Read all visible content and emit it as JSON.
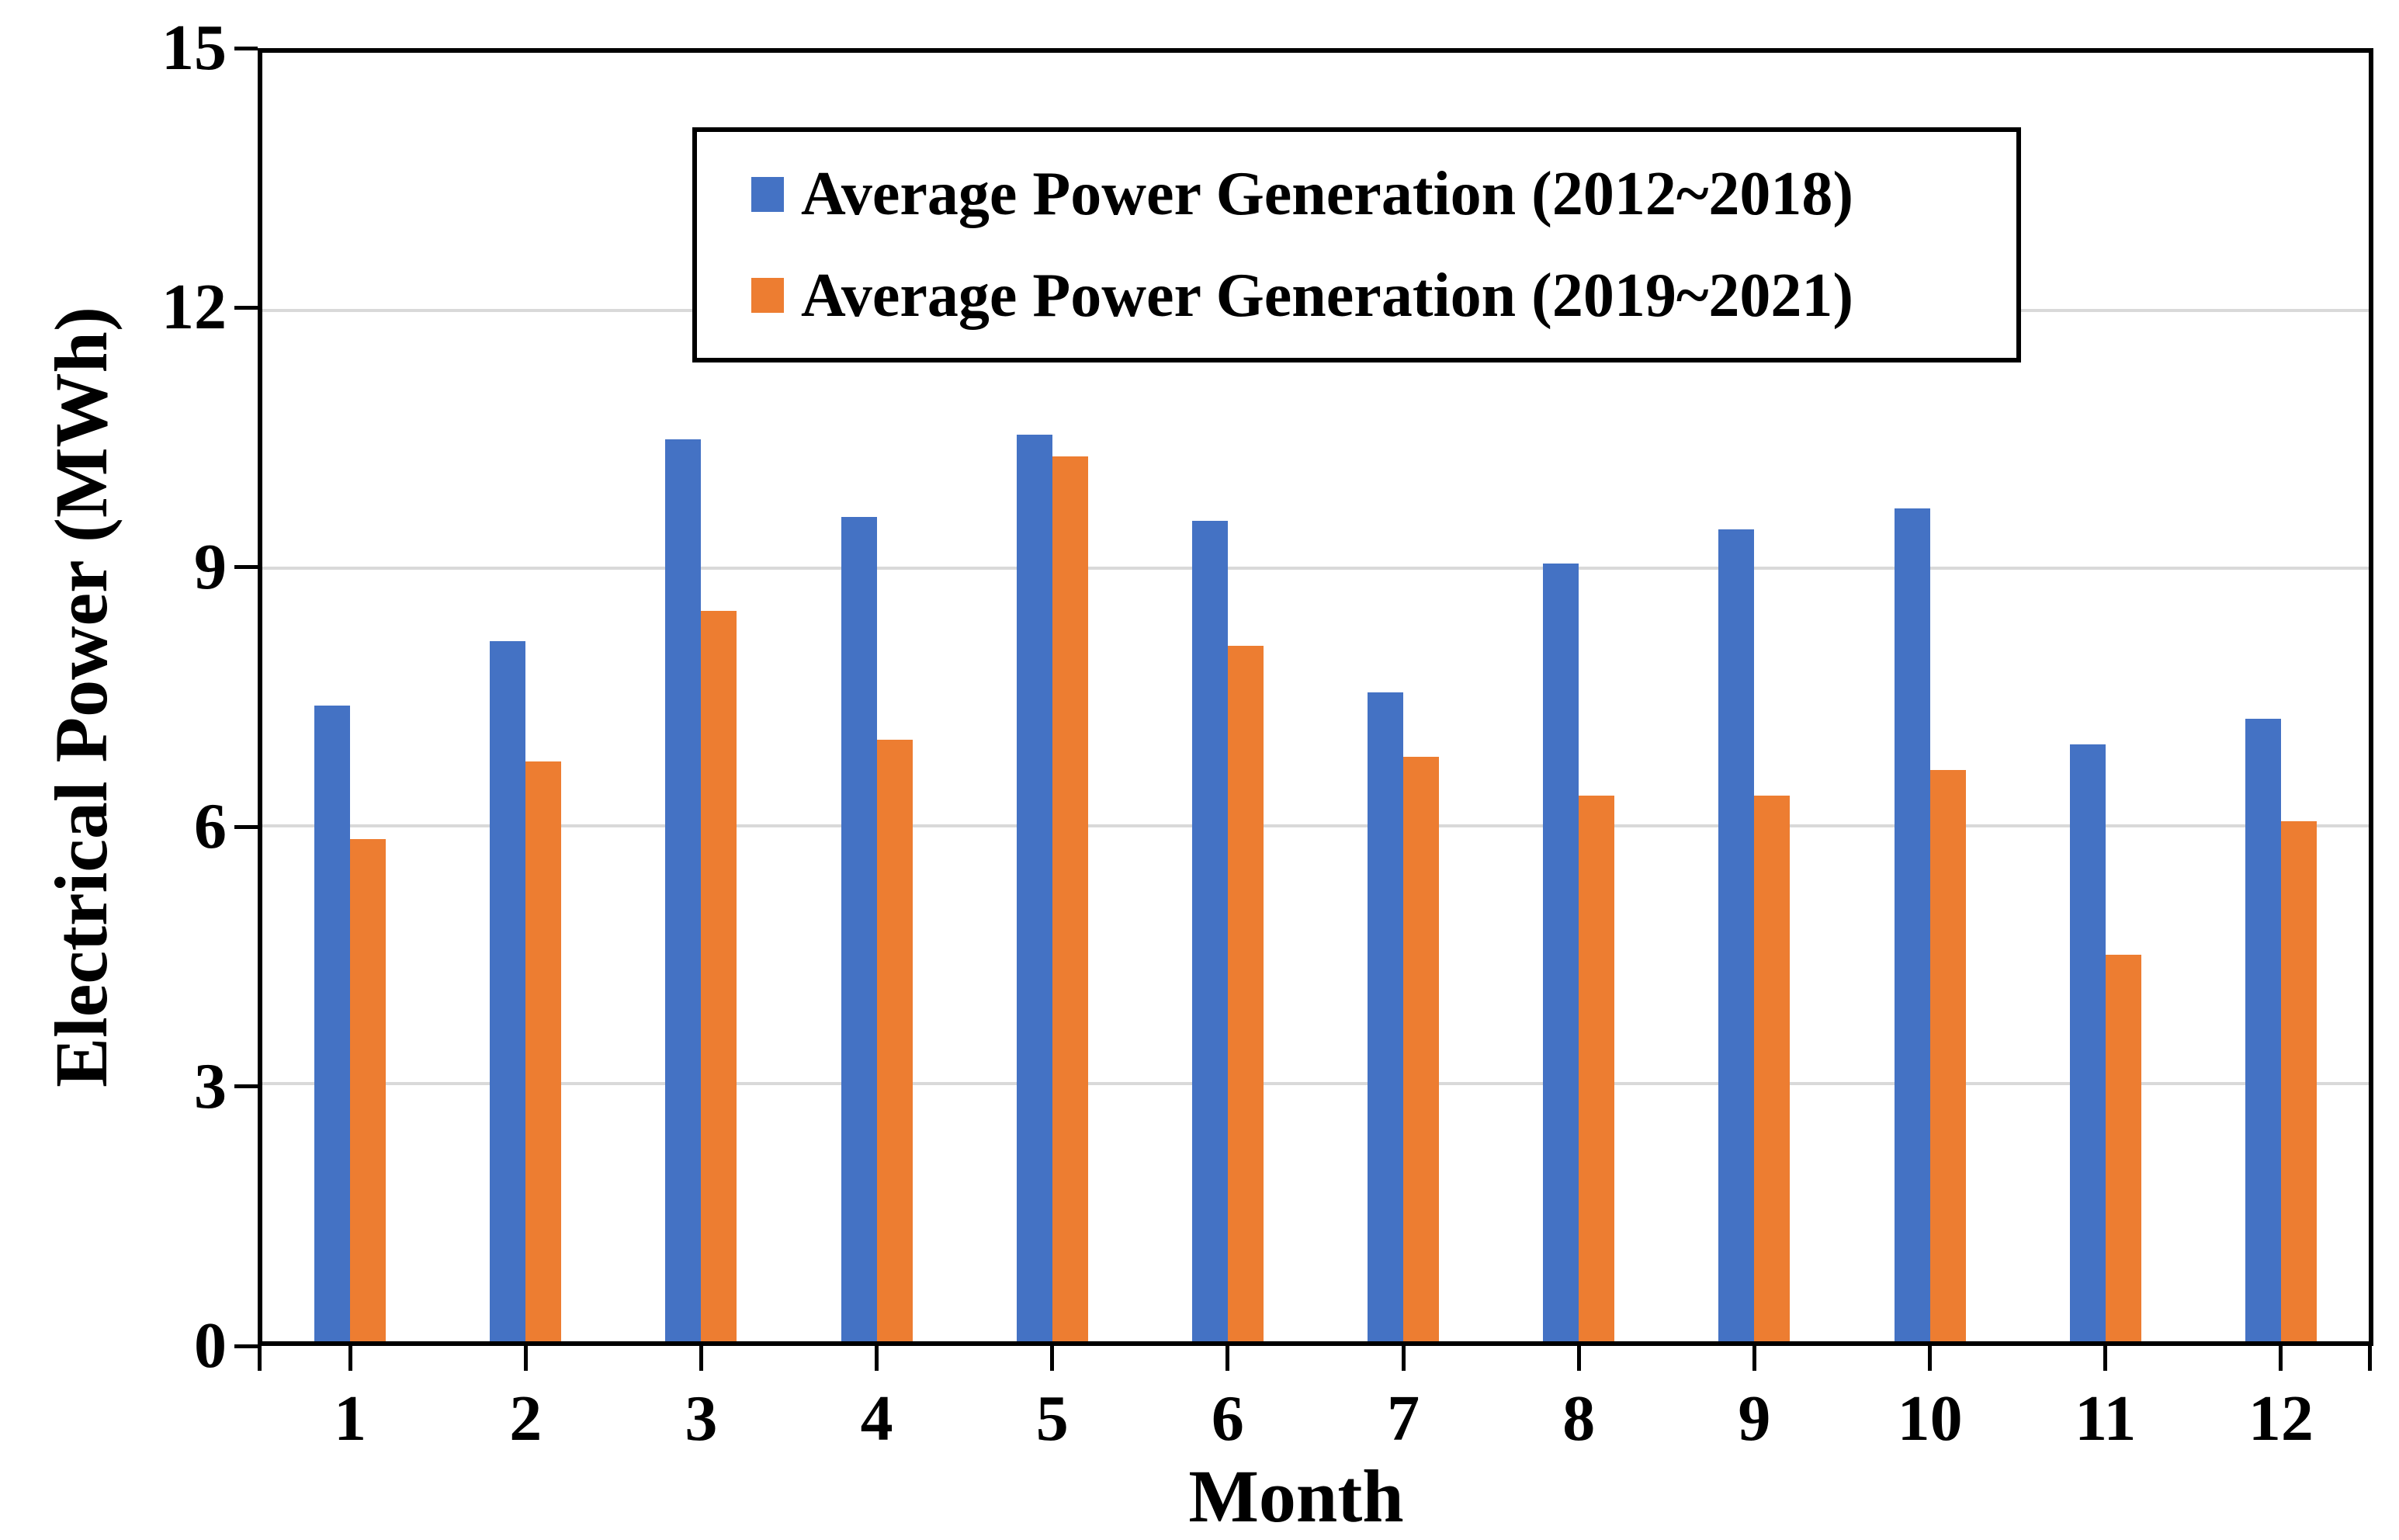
{
  "chart_data": {
    "type": "bar",
    "title": "",
    "xlabel": "Month",
    "ylabel": "Electrical Power (MWh)",
    "categories": [
      "1",
      "2",
      "3",
      "4",
      "5",
      "6",
      "7",
      "8",
      "9",
      "10",
      "11",
      "12"
    ],
    "series": [
      {
        "name": "Average Power Generation (2012~2018)",
        "color": "#4472C4",
        "values": [
          7.4,
          8.15,
          10.5,
          9.6,
          10.55,
          9.55,
          7.55,
          9.05,
          9.45,
          9.7,
          6.95,
          7.25
        ]
      },
      {
        "name": "Average Power Generation (2019~2021)",
        "color": "#ED7D31",
        "values": [
          5.85,
          6.75,
          8.5,
          7.0,
          10.3,
          8.1,
          6.8,
          6.35,
          6.35,
          6.65,
          4.5,
          6.05
        ]
      }
    ],
    "ylim": [
      0,
      15
    ],
    "yticks": [
      0,
      3,
      6,
      9,
      12,
      15
    ],
    "grid": true,
    "gridline_color": "#D9D9D9",
    "axis_color": "#000000",
    "background_color": "#FFFFFF",
    "legend_position": "top-center-inside"
  }
}
